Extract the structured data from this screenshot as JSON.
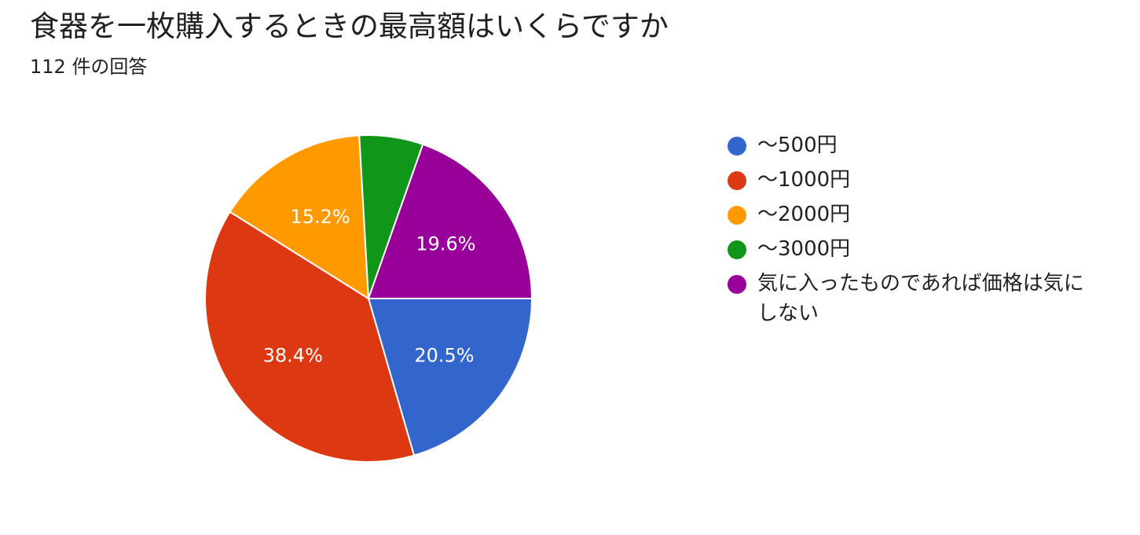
{
  "header": {
    "title": "食器を一枚購入するときの最高額はいくらですか",
    "response_count": "112 件の回答"
  },
  "chart_data": {
    "type": "pie",
    "categories": [
      "〜500円",
      "〜1000円",
      "〜2000円",
      "〜3000円",
      "気に入ったものであれば価格は気にしない"
    ],
    "values": [
      20.5,
      38.4,
      15.2,
      6.3,
      19.6
    ],
    "value_labels": [
      "20.5%",
      "38.4%",
      "15.2%",
      "",
      "19.6%"
    ],
    "colors": [
      "#3366cc",
      "#dc3912",
      "#ff9900",
      "#109618",
      "#990099"
    ],
    "legend_position": "right",
    "start_angle": "3 o'clock, clockwise"
  }
}
